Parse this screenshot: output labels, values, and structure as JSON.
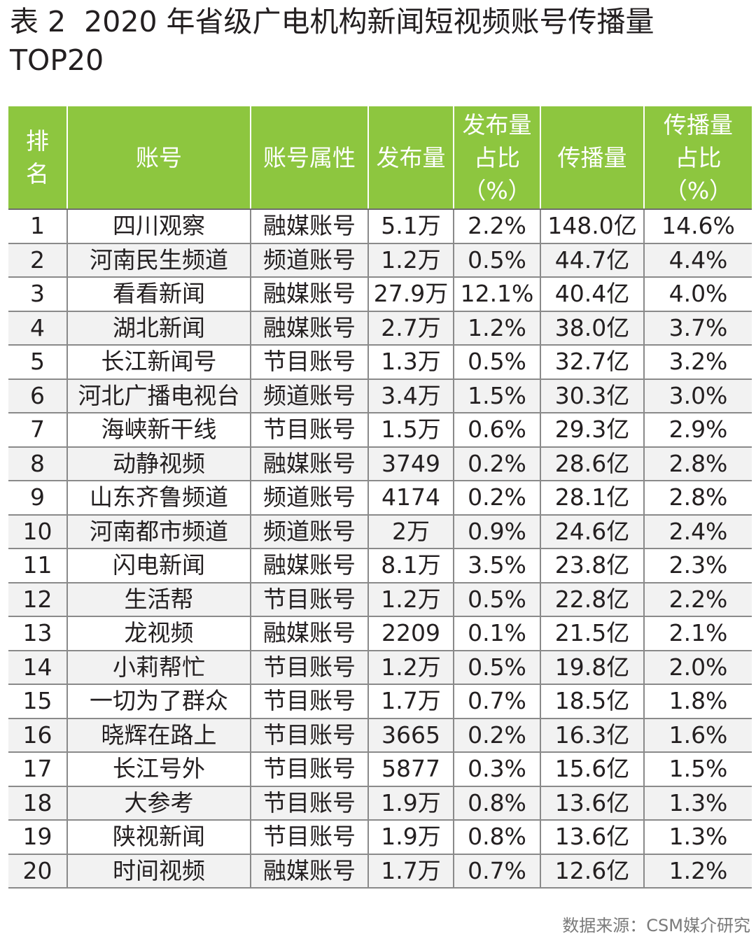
{
  "document": {
    "title": "表 2  2020 年省级广电机构新闻短视频账号传播量 TOP20",
    "source": "数据来源：CSM媒介研究"
  },
  "table": {
    "headers": [
      [
        "排",
        "名"
      ],
      [
        "账号"
      ],
      [
        "账号属性"
      ],
      [
        "发布量"
      ],
      [
        "发布量",
        "占比",
        "（%）"
      ],
      [
        "传播量"
      ],
      [
        "传播量",
        "占比",
        "（%）"
      ]
    ],
    "rows": [
      [
        "1",
        "四川观察",
        "融媒账号",
        "5.1万",
        "2.2%",
        "148.0亿",
        "14.6%"
      ],
      [
        "2",
        "河南民生频道",
        "频道账号",
        "1.2万",
        "0.5%",
        "44.7亿",
        "4.4%"
      ],
      [
        "3",
        "看看新闻",
        "融媒账号",
        "27.9万",
        "12.1%",
        "40.4亿",
        "4.0%"
      ],
      [
        "4",
        "湖北新闻",
        "融媒账号",
        "2.7万",
        "1.2%",
        "38.0亿",
        "3.7%"
      ],
      [
        "5",
        "长江新闻号",
        "节目账号",
        "1.3万",
        "0.5%",
        "32.7亿",
        "3.2%"
      ],
      [
        "6",
        "河北广播电视台",
        "频道账号",
        "3.4万",
        "1.5%",
        "30.3亿",
        "3.0%"
      ],
      [
        "7",
        "海峡新干线",
        "节目账号",
        "1.5万",
        "0.6%",
        "29.3亿",
        "2.9%"
      ],
      [
        "8",
        "动静视频",
        "融媒账号",
        "3749",
        "0.2%",
        "28.6亿",
        "2.8%"
      ],
      [
        "9",
        "山东齐鲁频道",
        "频道账号",
        "4174",
        "0.2%",
        "28.1亿",
        "2.8%"
      ],
      [
        "10",
        "河南都市频道",
        "频道账号",
        "2万",
        "0.9%",
        "24.6亿",
        "2.4%"
      ],
      [
        "11",
        "闪电新闻",
        "融媒账号",
        "8.1万",
        "3.5%",
        "23.8亿",
        "2.3%"
      ],
      [
        "12",
        "生活帮",
        "节目账号",
        "1.2万",
        "0.5%",
        "22.8亿",
        "2.2%"
      ],
      [
        "13",
        "龙视频",
        "融媒账号",
        "2209",
        "0.1%",
        "21.5亿",
        "2.1%"
      ],
      [
        "14",
        "小莉帮忙",
        "节目账号",
        "1.2万",
        "0.5%",
        "19.8亿",
        "2.0%"
      ],
      [
        "15",
        "一切为了群众",
        "节目账号",
        "1.7万",
        "0.7%",
        "18.5亿",
        "1.8%"
      ],
      [
        "16",
        "晓辉在路上",
        "节目账号",
        "3665",
        "0.2%",
        "16.3亿",
        "1.6%"
      ],
      [
        "17",
        "长江号外",
        "节目账号",
        "5877",
        "0.3%",
        "15.6亿",
        "1.5%"
      ],
      [
        "18",
        "大参考",
        "节目账号",
        "1.9万",
        "0.8%",
        "13.6亿",
        "1.3%"
      ],
      [
        "19",
        "陕视新闻",
        "节目账号",
        "1.9万",
        "0.8%",
        "13.6亿",
        "1.3%"
      ],
      [
        "20",
        "时间视频",
        "融媒账号",
        "1.7万",
        "0.7%",
        "12.6亿",
        "1.2%"
      ]
    ]
  },
  "colors": {
    "header_bg": "#8dc63f",
    "header_text": "#ffffff",
    "body_text": "#231f20",
    "grid": "#8a8a8a",
    "source_text": "#7a7a7a"
  }
}
